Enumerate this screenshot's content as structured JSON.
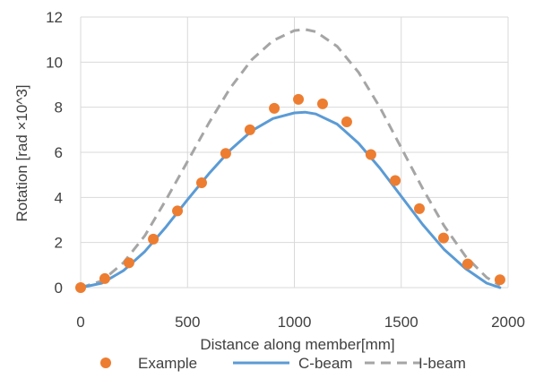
{
  "chart_data": {
    "type": "line",
    "title": "",
    "xlabel": "Distance along member[mm]",
    "ylabel": "Rotation [rad ×10^3]",
    "xlim": [
      0,
      2000
    ],
    "ylim": [
      0,
      12
    ],
    "xticks": [
      0,
      500,
      1000,
      1500,
      2000
    ],
    "yticks": [
      0,
      2,
      4,
      6,
      8,
      10,
      12
    ],
    "xtick_labels": [
      "0",
      "500",
      "1000",
      "1500",
      "2000"
    ],
    "ytick_labels": [
      "0",
      "2",
      "4",
      "6",
      "8",
      "10",
      "12"
    ],
    "grid": true,
    "legend_position": "bottom",
    "series": [
      {
        "name": "Example",
        "kind": "scatter",
        "color": "#ED7D31",
        "x": [
          0,
          113,
          226,
          340,
          453,
          566,
          679,
          792,
          906,
          1019,
          1132,
          1245,
          1358,
          1472,
          1585,
          1698,
          1811,
          1962
        ],
        "y": [
          0.0,
          0.4,
          1.1,
          2.15,
          3.4,
          4.65,
          5.95,
          7.0,
          7.95,
          8.35,
          8.15,
          7.35,
          5.9,
          4.75,
          3.5,
          2.2,
          1.05,
          0.35
        ]
      },
      {
        "name": "C-beam",
        "kind": "line",
        "color": "#5B9BD5",
        "x": [
          0,
          100,
          200,
          300,
          400,
          500,
          600,
          700,
          800,
          900,
          1000,
          1050,
          1100,
          1200,
          1300,
          1400,
          1500,
          1600,
          1700,
          1800,
          1900,
          1962
        ],
        "y": [
          0.0,
          0.2,
          0.75,
          1.6,
          2.7,
          3.9,
          5.05,
          6.1,
          6.95,
          7.5,
          7.75,
          7.78,
          7.7,
          7.25,
          6.4,
          5.3,
          4.05,
          2.8,
          1.7,
          0.85,
          0.2,
          0.0
        ]
      },
      {
        "name": "I-beam",
        "kind": "dashed-line",
        "color": "#A5A5A5",
        "x": [
          0,
          100,
          200,
          300,
          400,
          500,
          600,
          700,
          800,
          900,
          1000,
          1050,
          1100,
          1200,
          1300,
          1400,
          1500,
          1600,
          1700,
          1800,
          1900,
          1962
        ],
        "y": [
          0.0,
          0.3,
          1.1,
          2.3,
          3.9,
          5.6,
          7.3,
          8.85,
          10.1,
          10.95,
          11.4,
          11.45,
          11.35,
          10.7,
          9.55,
          8.0,
          6.2,
          4.4,
          2.75,
          1.4,
          0.45,
          0.1
        ]
      }
    ]
  }
}
